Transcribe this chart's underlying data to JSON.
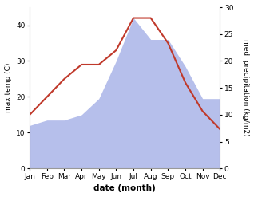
{
  "months": [
    "Jan",
    "Feb",
    "Mar",
    "Apr",
    "May",
    "Jun",
    "Jul",
    "Aug",
    "Sep",
    "Oct",
    "Nov",
    "Dec"
  ],
  "temperature": [
    15,
    20,
    25,
    29,
    29,
    33,
    42,
    42,
    35,
    24,
    16,
    11
  ],
  "precipitation": [
    8,
    9,
    9,
    10,
    13,
    20,
    28,
    24,
    24,
    19,
    13,
    13
  ],
  "temp_color": "#c0392b",
  "precip_color_fill": "#aab4e8",
  "ylabel_left": "max temp (C)",
  "ylabel_right": "med. precipitation (kg/m2)",
  "xlabel": "date (month)",
  "ylim_left": [
    0,
    45
  ],
  "ylim_right": [
    0,
    30
  ],
  "yticks_left": [
    0,
    10,
    20,
    30,
    40
  ],
  "yticks_right": [
    0,
    5,
    10,
    15,
    20,
    25,
    30
  ],
  "background_color": "#ffffff"
}
